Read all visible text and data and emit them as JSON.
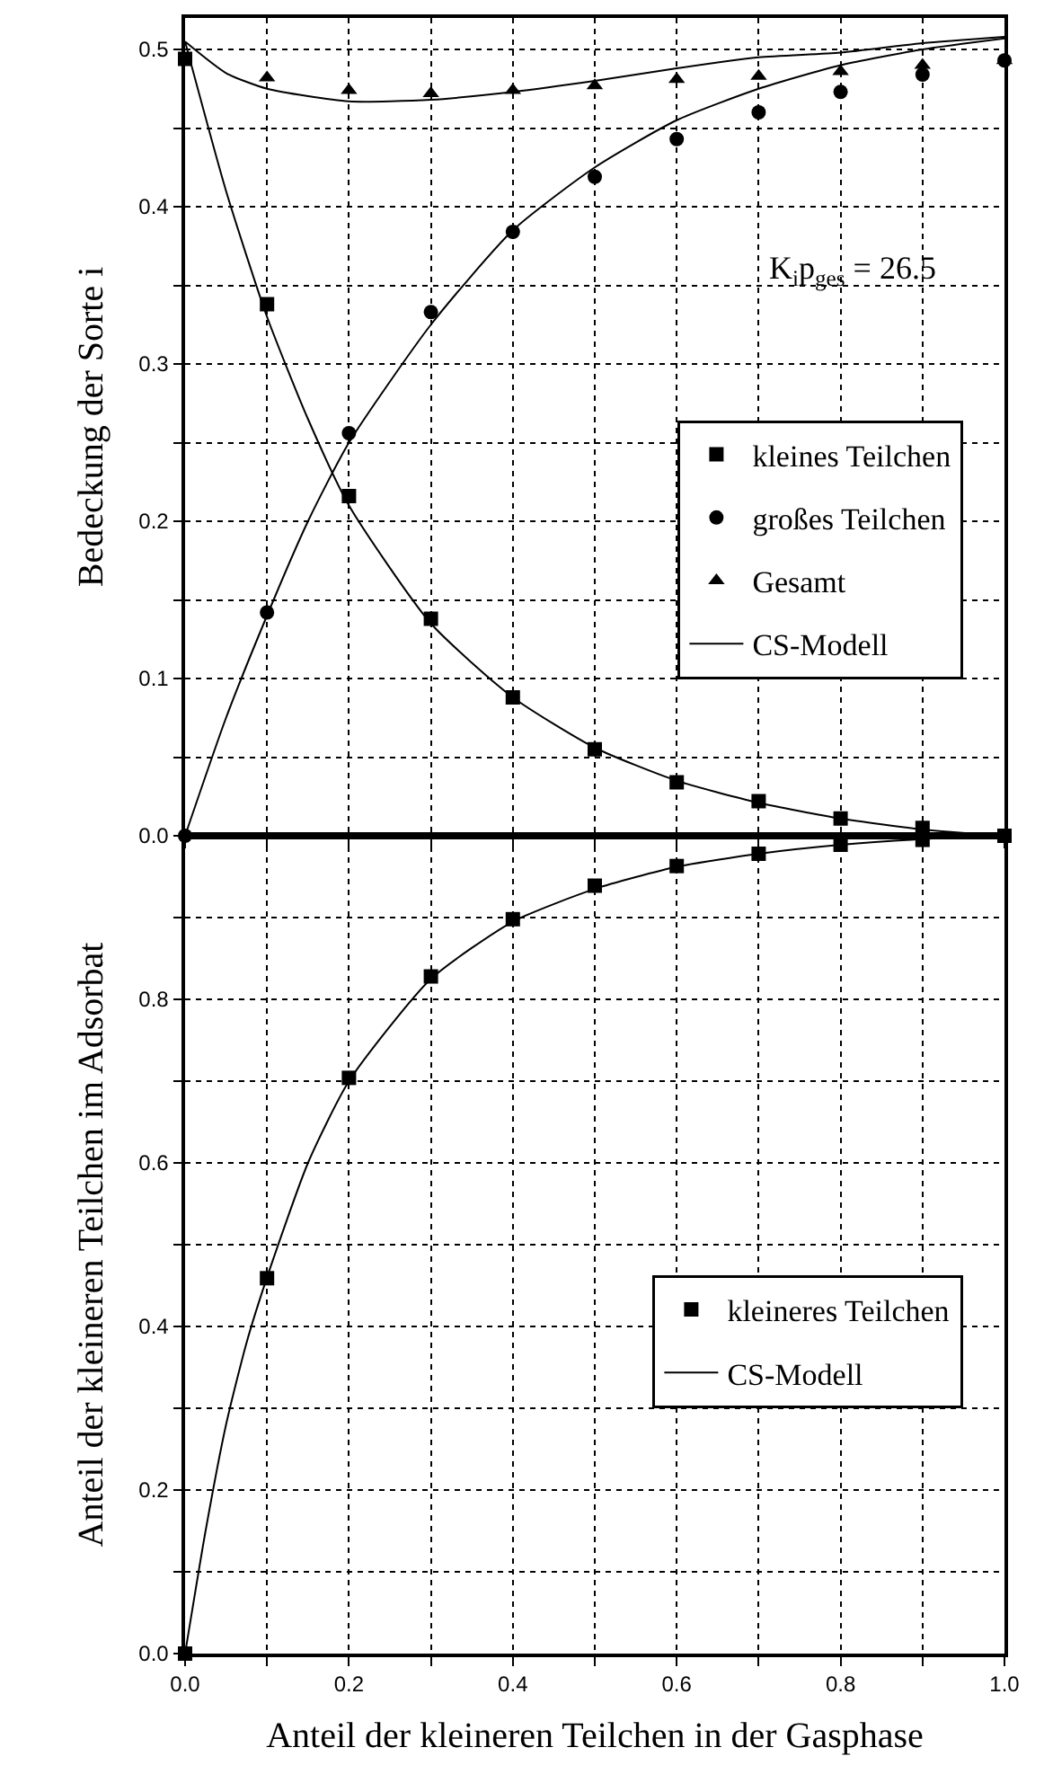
{
  "chart_data": [
    {
      "type": "scatter",
      "ylabel": "Bedeckung der Sorte i",
      "xlim": [
        0,
        1
      ],
      "ylim": [
        0,
        0.52
      ],
      "xticks": [
        {
          "value": 0,
          "label": null
        },
        {
          "value": 0.1,
          "label": null
        },
        {
          "value": 0.2,
          "label": null
        },
        {
          "value": 0.3,
          "label": null
        },
        {
          "value": 0.4,
          "label": null
        },
        {
          "value": 0.5,
          "label": null
        },
        {
          "value": 0.6,
          "label": null
        },
        {
          "value": 0.7,
          "label": null
        },
        {
          "value": 0.8,
          "label": null
        },
        {
          "value": 0.9,
          "label": null
        },
        {
          "value": 1,
          "label": null
        }
      ],
      "yticks": [
        {
          "value": 0,
          "label": "0.0"
        },
        {
          "value": 0.05,
          "label": null
        },
        0.1,
        {
          "value": 0.15,
          "label": null
        },
        0.2,
        {
          "value": 0.25,
          "label": null
        },
        0.3,
        {
          "value": 0.35,
          "label": null
        },
        0.4,
        {
          "value": 0.45,
          "label": null
        },
        0.5
      ],
      "tick_labels": "y",
      "grid": true,
      "legend": "right",
      "annotations": [
        "K$_{i}$p$_{ges}$ = 26.5"
      ],
      "series": [
        {
          "name": "kleines Teilchen",
          "color": "#000000",
          "marker": "square",
          "x": [
            0,
            0.1,
            0.2,
            0.3,
            0.4,
            0.5,
            0.6,
            0.7,
            0.8,
            0.9,
            1.0
          ],
          "values": [
            0.494,
            0.338,
            0.216,
            0.138,
            0.088,
            0.055,
            0.034,
            0.022,
            0.011,
            0.005,
            0
          ]
        },
        {
          "name": "großes Teilchen",
          "color": "#000000",
          "marker": "circle",
          "x": [
            0,
            0.1,
            0.2,
            0.3,
            0.4,
            0.5,
            0.6,
            0.7,
            0.8,
            0.9,
            1.0
          ],
          "values": [
            0,
            0.142,
            0.256,
            0.333,
            0.384,
            0.419,
            0.443,
            0.46,
            0.473,
            0.484,
            0.493
          ]
        },
        {
          "name": "Gesamt",
          "color": "#000000",
          "marker": "triangle",
          "x": [
            0.1,
            0.2,
            0.3,
            0.4,
            0.5,
            0.6,
            0.7,
            0.8,
            0.9,
            1.0
          ],
          "values": [
            0.482,
            0.474,
            0.472,
            0.474,
            0.477,
            0.481,
            0.483,
            0.486,
            0.49,
            0.493
          ]
        },
        {
          "name": "CS-Modell",
          "type": "line",
          "color": "#000000",
          "line_style": "solid",
          "x": [
            0,
            0.05,
            0.1,
            0.15,
            0.2,
            0.3,
            0.4,
            0.5,
            0.6,
            0.7,
            0.8,
            0.9,
            1.0
          ],
          "values": [
            0.505,
            0.41,
            0.33,
            0.265,
            0.21,
            0.135,
            0.088,
            0.056,
            0.035,
            0.021,
            0.011,
            0.004,
            0
          ]
        },
        {
          "type": "line",
          "color": "#000000",
          "line_style": "solid",
          "x": [
            0,
            0.05,
            0.1,
            0.15,
            0.2,
            0.3,
            0.4,
            0.5,
            0.6,
            0.7,
            0.8,
            0.9,
            1.0
          ],
          "values": [
            0,
            0.075,
            0.14,
            0.2,
            0.25,
            0.325,
            0.385,
            0.425,
            0.455,
            0.475,
            0.49,
            0.5,
            0.507
          ]
        },
        {
          "type": "line",
          "color": "#000000",
          "line_style": "solid",
          "x": [
            0,
            0.05,
            0.1,
            0.2,
            0.3,
            0.4,
            0.5,
            0.6,
            0.7,
            0.8,
            0.9,
            1.0
          ],
          "values": [
            0.505,
            0.485,
            0.475,
            0.467,
            0.468,
            0.473,
            0.48,
            0.488,
            0.495,
            0.498,
            0.504,
            0.508
          ]
        }
      ]
    },
    {
      "type": "scatter",
      "xlabel": "Anteil der kleineren Teilchen in der Gasphase",
      "ylabel": "Anteil der kleineren Teilchen im Adsorbat",
      "xlim": [
        0,
        1
      ],
      "ylim": [
        0,
        1
      ],
      "xticks": [
        {
          "value": 0,
          "label": "0.0"
        },
        {
          "value": 0.1,
          "label": null
        },
        {
          "value": 0.2,
          "label": "0.2"
        },
        {
          "value": 0.3,
          "label": null
        },
        {
          "value": 0.4,
          "label": "0.4"
        },
        {
          "value": 0.5,
          "label": null
        },
        {
          "value": 0.6,
          "label": "0.6"
        },
        {
          "value": 0.7,
          "label": null
        },
        {
          "value": 0.8,
          "label": "0.8"
        },
        {
          "value": 0.9,
          "label": null
        },
        {
          "value": 1,
          "label": "1.0"
        }
      ],
      "yticks": [
        {
          "value": 0,
          "label": "0.0"
        },
        {
          "value": 0.1,
          "label": null
        },
        0.2,
        {
          "value": 0.3,
          "label": null
        },
        0.4,
        {
          "value": 0.5,
          "label": null
        },
        0.6,
        {
          "value": 0.7,
          "label": null
        },
        0.8,
        {
          "value": 0.9,
          "label": null
        },
        {
          "value": 1,
          "label": null
        }
      ],
      "grid": true,
      "legend": "bottom right",
      "series": [
        {
          "name": "kleineres Teilchen",
          "color": "#000000",
          "marker": "square",
          "x": [
            0,
            0.1,
            0.2,
            0.3,
            0.4,
            0.5,
            0.6,
            0.7,
            0.8,
            0.9
          ],
          "values": [
            0,
            0.459,
            0.704,
            0.828,
            0.898,
            0.939,
            0.963,
            0.978,
            0.989,
            0.995
          ]
        },
        {
          "name": "CS-Modell",
          "type": "line",
          "color": "#000000",
          "line_style": "solid",
          "x": [
            0,
            0.025,
            0.05,
            0.075,
            0.1,
            0.15,
            0.2,
            0.3,
            0.4,
            0.5,
            0.6,
            0.7,
            0.8,
            0.9,
            1.0
          ],
          "values": [
            0,
            0.15,
            0.28,
            0.38,
            0.46,
            0.6,
            0.7,
            0.825,
            0.895,
            0.935,
            0.962,
            0.978,
            0.989,
            0.996,
            1.0
          ]
        }
      ]
    }
  ]
}
